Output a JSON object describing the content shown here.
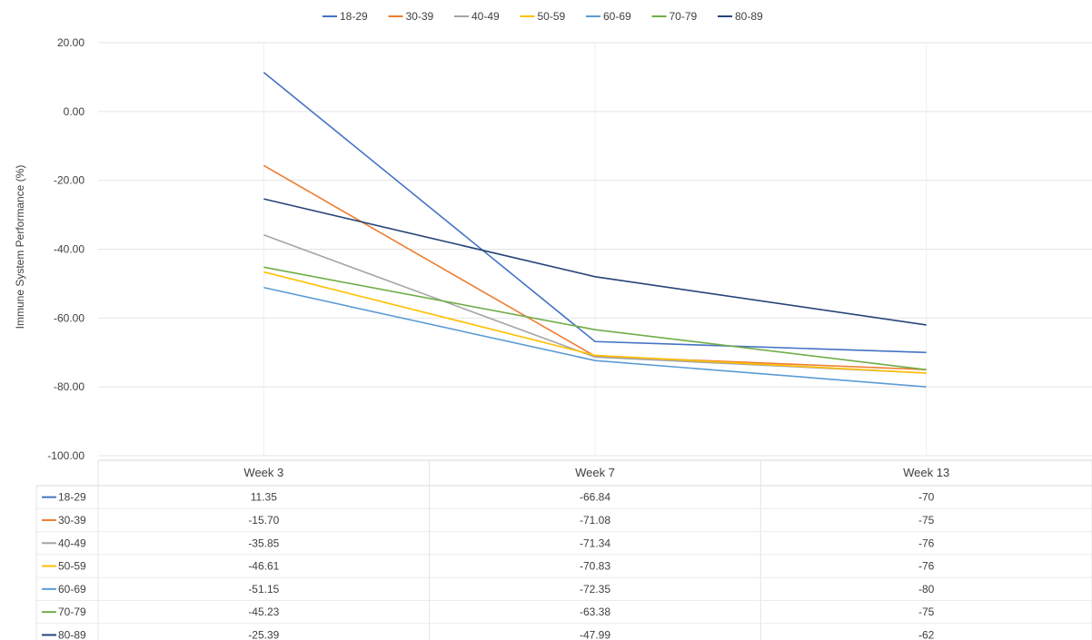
{
  "chart_data": {
    "type": "line",
    "categories": [
      "Week 3",
      "Week 7",
      "Week 13"
    ],
    "ylabel": "Immune System Performance (%)",
    "ylim": [
      -100,
      20
    ],
    "yticks": [
      "20.00",
      "0.00",
      "-20.00",
      "-40.00",
      "-60.00",
      "-80.00",
      "-100.00"
    ],
    "ytick_values": [
      20,
      0,
      -20,
      -40,
      -60,
      -80,
      -100
    ],
    "legend_position": "top",
    "grid": true,
    "data_table": true,
    "series": [
      {
        "name": "18-29",
        "color": "#4472C4",
        "values": [
          11.35,
          -66.84,
          -70
        ],
        "labels": [
          "11.35",
          "-66.84",
          "-70"
        ]
      },
      {
        "name": "30-39",
        "color": "#ED7D31",
        "values": [
          -15.7,
          -71.08,
          -75
        ],
        "labels": [
          "-15.70",
          "-71.08",
          "-75"
        ]
      },
      {
        "name": "40-49",
        "color": "#A5A5A5",
        "values": [
          -35.85,
          -71.34,
          -76
        ],
        "labels": [
          "-35.85",
          "-71.34",
          "-76"
        ]
      },
      {
        "name": "50-59",
        "color": "#FFC000",
        "values": [
          -46.61,
          -70.83,
          -76
        ],
        "labels": [
          "-46.61",
          "-70.83",
          "-76"
        ]
      },
      {
        "name": "60-69",
        "color": "#5B9BD5",
        "values": [
          -51.15,
          -72.35,
          -80
        ],
        "labels": [
          "-51.15",
          "-72.35",
          "-80"
        ]
      },
      {
        "name": "70-79",
        "color": "#70AD47",
        "values": [
          -45.23,
          -63.38,
          -75
        ],
        "labels": [
          "-45.23",
          "-63.38",
          "-75"
        ]
      },
      {
        "name": "80-89",
        "color": "#264478",
        "values": [
          -25.39,
          -47.99,
          -62
        ],
        "labels": [
          "-25.39",
          "-47.99",
          "-62"
        ]
      }
    ]
  }
}
